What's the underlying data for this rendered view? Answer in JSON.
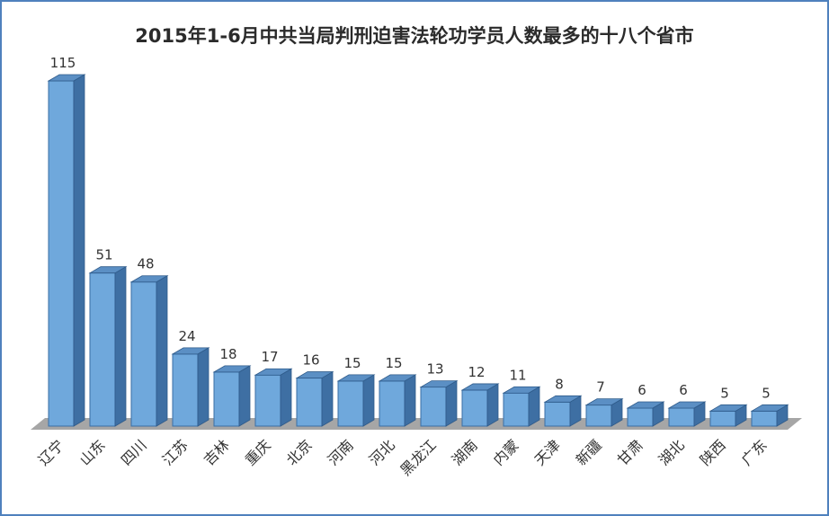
{
  "chart_data": {
    "type": "bar",
    "title": "2015年1-6月中共当局判刑迫害法轮功学员人数最多的十八个省市",
    "categories": [
      "辽宁",
      "山东",
      "四川",
      "江苏",
      "吉林",
      "重庆",
      "北京",
      "河南",
      "河北",
      "黑龙江",
      "湖南",
      "内蒙",
      "天津",
      "新疆",
      "甘肃",
      "湖北",
      "陕西",
      "广东"
    ],
    "values": [
      115,
      51,
      48,
      24,
      18,
      17,
      16,
      15,
      15,
      13,
      12,
      11,
      8,
      7,
      6,
      6,
      5,
      5
    ],
    "ylim": [
      0,
      115
    ],
    "grid": false,
    "legend": "none",
    "colors": {
      "bar_front": "#6fa8dc",
      "bar_side": "#3e6fa3",
      "bar_top": "#5b8fc4",
      "floor": "#a6a6a6",
      "frame": "#4f81bd"
    }
  }
}
